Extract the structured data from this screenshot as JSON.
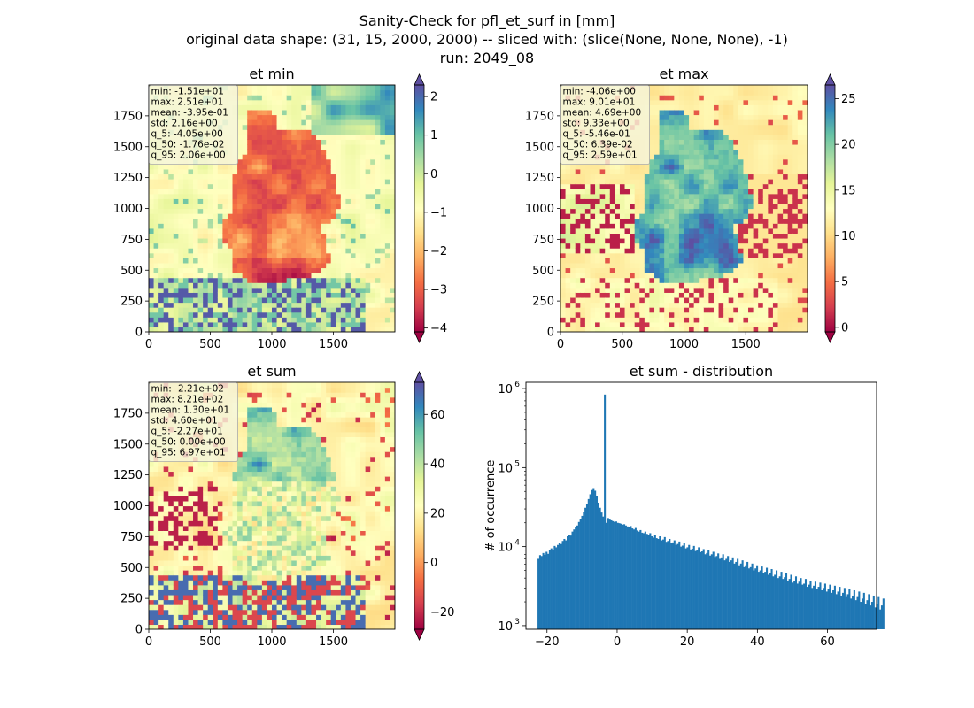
{
  "figure": {
    "title_lines": [
      "Sanity-Check for pfl_et_surf in [mm]",
      "original data shape: (31, 15, 2000, 2000) -- sliced with: (slice(None, None, None), -1)",
      "run: 2049_08"
    ]
  },
  "chart_data": [
    {
      "type": "heatmap",
      "title": "et min",
      "colormap": "Spectral",
      "x_ticks": [
        "0",
        "500",
        "1000",
        "1500"
      ],
      "y_ticks": [
        "0",
        "250",
        "500",
        "750",
        "1000",
        "1250",
        "1500",
        "1750"
      ],
      "xlim": [
        0,
        2000
      ],
      "ylim": [
        0,
        2000
      ],
      "colorbar": {
        "range": [
          -4.1,
          2.3
        ],
        "ticks": [
          "−4",
          "−3",
          "−2",
          "−1",
          "0",
          "1",
          "2"
        ],
        "tick_values": [
          -4,
          -3,
          -2,
          -1,
          0,
          1,
          2
        ],
        "extend": "both"
      },
      "stats": [
        "min: -1.51e+01",
        "max: 2.51e+01",
        "mean: -3.95e-01",
        "std: 2.16e+00",
        "q_5: -4.05e+00",
        "q_50: -1.76e-02",
        "q_95: 2.06e+00"
      ]
    },
    {
      "type": "heatmap",
      "title": "et max",
      "colormap": "Spectral",
      "x_ticks": [
        "0",
        "500",
        "1000",
        "1500"
      ],
      "y_ticks": [
        "0",
        "250",
        "500",
        "750",
        "1000",
        "1250",
        "1500",
        "1750"
      ],
      "xlim": [
        0,
        2000
      ],
      "ylim": [
        0,
        2000
      ],
      "colorbar": {
        "range": [
          -0.5,
          26.5
        ],
        "ticks": [
          "0",
          "5",
          "10",
          "15",
          "20",
          "25"
        ],
        "tick_values": [
          0,
          5,
          10,
          15,
          20,
          25
        ],
        "extend": "both"
      },
      "stats": [
        "min: -4.06e+00",
        "max: 9.01e+01",
        "mean: 4.69e+00",
        "std: 9.33e+00",
        "q_5: -5.46e-01",
        "q_50: 6.39e-02",
        "q_95: 2.59e+01"
      ]
    },
    {
      "type": "heatmap",
      "title": "et sum",
      "colormap": "Spectral",
      "x_ticks": [
        "0",
        "500",
        "1000",
        "1500"
      ],
      "y_ticks": [
        "0",
        "250",
        "500",
        "750",
        "1000",
        "1250",
        "1500",
        "1750"
      ],
      "xlim": [
        0,
        2000
      ],
      "ylim": [
        0,
        2000
      ],
      "colorbar": {
        "range": [
          -27,
          73
        ],
        "ticks": [
          "−20",
          "0",
          "20",
          "40",
          "60"
        ],
        "tick_values": [
          -20,
          0,
          20,
          40,
          60
        ],
        "extend": "both"
      },
      "stats": [
        "min: -2.21e+02",
        "max: 8.21e+02",
        "mean: 1.30e+01",
        "std: 4.60e+01",
        "q_5: -2.27e+01",
        "q_50: 0.00e+00",
        "q_95: 6.97e+01"
      ]
    },
    {
      "type": "bar",
      "title": "et sum - distribution",
      "ylabel": "# of occurrence",
      "yscale": "log",
      "xlim": [
        -26,
        74
      ],
      "ylim": [
        900,
        1200000
      ],
      "x_ticks": [
        "−20",
        "0",
        "20",
        "40",
        "60"
      ],
      "x_tick_values": [
        -20,
        0,
        20,
        40,
        60
      ],
      "y_ticks": [
        "10",
        "10",
        "10",
        "10"
      ],
      "y_tick_exponents": [
        "3",
        "4",
        "5",
        "6"
      ],
      "y_tick_values": [
        1000,
        10000,
        100000,
        1000000
      ],
      "bin_start": -22.7,
      "bin_width": 0.462,
      "color": "#1f77b4",
      "counts": [
        7000,
        7800,
        7600,
        8300,
        7900,
        8600,
        8100,
        9000,
        9500,
        9000,
        10200,
        9800,
        10500,
        11200,
        10800,
        11800,
        12500,
        12000,
        13500,
        14200,
        13800,
        15500,
        16500,
        17500,
        18500,
        20500,
        22500,
        24500,
        27500,
        31000,
        35000,
        40000,
        46000,
        52000,
        55000,
        51000,
        44000,
        36000,
        31000,
        27000,
        24000,
        840000,
        20000,
        23000,
        22000,
        21500,
        21000,
        20500,
        20800,
        20000,
        19800,
        19500,
        19000,
        19200,
        18500,
        18000,
        17800,
        18200,
        17000,
        16500,
        17200,
        16000,
        15500,
        16200,
        15000,
        14800,
        15500,
        14500,
        14000,
        14800,
        13500,
        13000,
        14000,
        12800,
        12500,
        13500,
        12000,
        12300,
        13200,
        11500,
        11800,
        12500,
        11000,
        11300,
        12000,
        10500,
        10800,
        11600,
        10000,
        10300,
        11000,
        9500,
        9800,
        10500,
        9200,
        9400,
        10200,
        8800,
        9000,
        9800,
        8500,
        8700,
        9300,
        8000,
        8300,
        9000,
        7700,
        8000,
        8600,
        7400,
        7600,
        8200,
        7000,
        7300,
        8000,
        6700,
        7000,
        7600,
        6400,
        6700,
        7300,
        6100,
        6400,
        7000,
        5800,
        6100,
        6700,
        5500,
        5800,
        6400,
        5300,
        5500,
        6100,
        5000,
        5300,
        5800,
        4800,
        5000,
        5600,
        4600,
        4800,
        5400,
        4400,
        4600,
        5200,
        4200,
        4400,
        5000,
        4000,
        4200,
        4800,
        3900,
        4100,
        4600,
        3700,
        3900,
        4400,
        3500,
        3700,
        4200,
        3400,
        3600,
        4000,
        3300,
        3400,
        3900,
        3100,
        3300,
        3700,
        3000,
        3200,
        3600,
        2900,
        3100,
        3500,
        2800,
        3000,
        3400,
        2700,
        2900,
        3300,
        2600,
        2800,
        3200,
        2500,
        2700,
        3100,
        2400,
        2600,
        3000,
        2300,
        2500,
        2900,
        2200,
        2400,
        2800,
        2100,
        2300,
        2700,
        2000,
        2200,
        2600,
        1900,
        2100,
        2500,
        1800,
        2000,
        2400,
        1700,
        1900,
        2300,
        1600,
        1800,
        2200
      ]
    }
  ]
}
